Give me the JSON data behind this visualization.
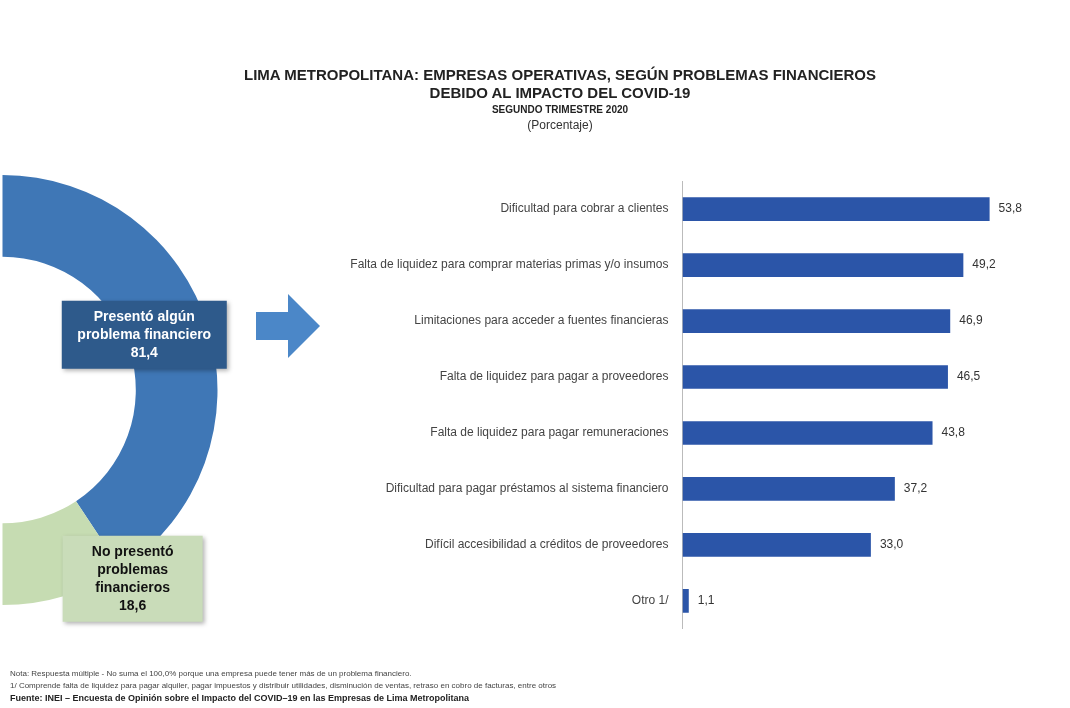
{
  "chart_data": [
    {
      "type": "donut",
      "categories": [
        "Presentó algún problema financiero",
        "No presentó problemas financieros"
      ],
      "values": [
        81.4,
        18.6
      ],
      "colors": [
        "#3f77b6",
        "#c6dcb2"
      ],
      "value_labels": [
        "81,4",
        "18,6"
      ]
    },
    {
      "type": "bar",
      "orientation": "horizontal",
      "title": "LIMA METROPOLITANA: EMPRESAS OPERATIVAS, SEGÚN PROBLEMAS FINANCIEROS\nDEBIDO AL IMPACTO DEL COVID-19",
      "subtitle": "SEGUNDO TRIMESTRE 2020",
      "tick_labels": "y",
      "categories": [
        "Dificultad para cobrar a clientes",
        "Falta de liquidez para comprar materias primas y/o insumos",
        "Limitaciones para acceder a fuentes financieras",
        "Falta de liquidez para pagar a proveedores",
        "Falta de liquidez para pagar remuneraciones",
        "Dificultad para pagar préstamos al sistema financiero",
        "Difícil accesibilidad a créditos de proveedores",
        "Otro 1/"
      ],
      "values": [
        53.8,
        49.2,
        46.9,
        46.5,
        43.8,
        37.2,
        33.0,
        1.1
      ],
      "color": "#2b55a8",
      "value_labels": [
        "53,8",
        "49,2",
        "46,9",
        "46,5",
        "43,8",
        "37,2",
        "33,0",
        "1,1"
      ],
      "annotations": [
        "(Porcentaje)",
        "Nota: Respuesta múltiple - No suma el 100,0% porque una empresa puede tener más de un problema financiero.",
        "1/ Comprende falta de liquidez para pagar alquiler, pagar impuestos y distribuir utilidades, disminución de ventas, retraso en cobro de facturas, entre otros",
        "Fuente: INEI – Encuesta de Opinión sobre el Impacto del COVID–19 en las Empresas de Lima Metropolitana"
      ]
    }
  ]
}
